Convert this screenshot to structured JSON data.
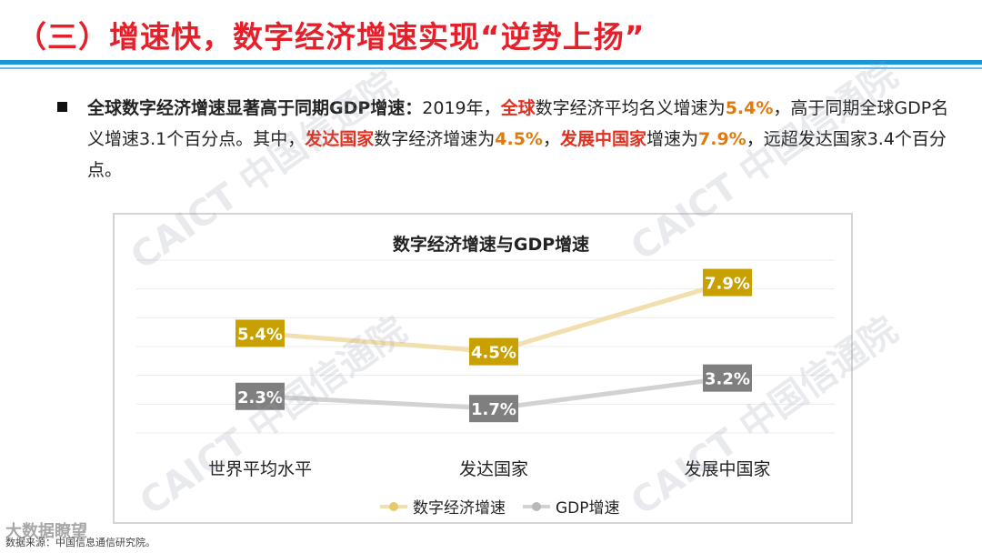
{
  "slide": {
    "title": "（三）增速快，数字经济增速实现“逆势上扬”",
    "bullet": {
      "lead": "全球数字经济增速显著高于同期GDP增速：",
      "t1": "2019年，",
      "r1": "全球",
      "t2": "数字经济平均名义增速为",
      "o1": "5.4%",
      "t3": "，高于同期全球GDP名义增速3.1个百分点。其中，",
      "r2": "发达国家",
      "t4": "数字经济增速为",
      "o2": "4.5%",
      "t5": "，",
      "r3": "发展中国家",
      "t6": "增速为",
      "o3": "7.9%",
      "t7": "，远超发达国家3.4个百分点。"
    },
    "source": "数据来源：中国信息通信研究院。",
    "brand_watermark": "大数据瞭望",
    "watermark": "CAICT 中国信通院"
  },
  "colors": {
    "title": "#e4202a",
    "digital": "#c8a000",
    "digital_line": "#f2dfae",
    "gdp": "#7f7f7f",
    "gdp_line": "#d2d2d2",
    "rule": "#1896d6"
  },
  "chart_data": {
    "type": "line",
    "title": "数字经济增速与GDP增速",
    "categories": [
      "世界平均水平",
      "发达国家",
      "发展中国家"
    ],
    "series": [
      {
        "name": "数字经济增速",
        "values": [
          5.4,
          4.5,
          7.9
        ],
        "labels": [
          "5.4%",
          "4.5%",
          "7.9%"
        ]
      },
      {
        "name": "GDP增速",
        "values": [
          2.3,
          1.7,
          3.2
        ],
        "labels": [
          "2.3%",
          "1.7%",
          "3.2%"
        ]
      }
    ],
    "xlabel": "",
    "ylabel": "",
    "grid": true,
    "legend": "bottom"
  }
}
